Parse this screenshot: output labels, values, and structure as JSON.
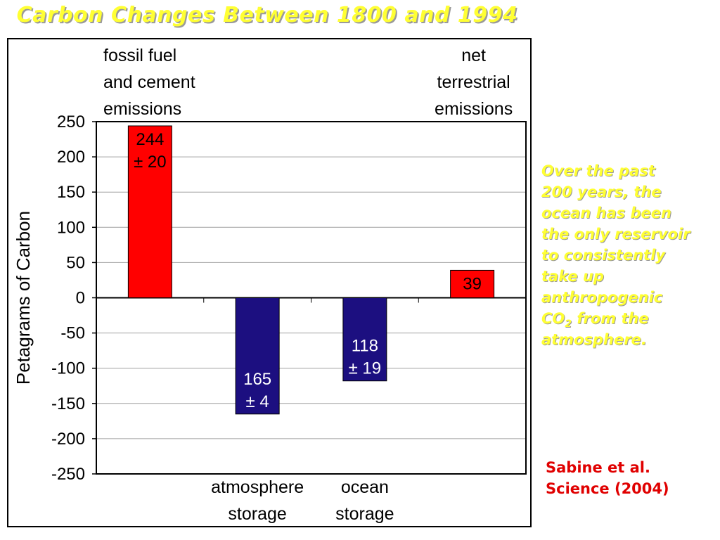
{
  "title": "Carbon Changes Between 1800 and 1994",
  "note": {
    "lines": [
      "Over the past",
      "200 years, the",
      "ocean has been",
      "the only reservoir",
      "to consistently",
      "take up",
      "anthropogenic"
    ],
    "co2_main": "CO",
    "co2_sub": "2",
    "co2_rest": " from the",
    "last_line": "atmosphere."
  },
  "citation": {
    "line1": "Sabine et al.",
    "line2": "Science (2004)"
  },
  "colors": {
    "positive_bar": "#ff0000",
    "negative_bar": "#1c0f80",
    "title_yellow": "#ffff33",
    "citation_red": "#e00000"
  },
  "chart_data": {
    "type": "bar",
    "ylabel": "Petagrams of Carbon",
    "ylim": [
      -250,
      250
    ],
    "yticks": [
      250,
      200,
      150,
      100,
      50,
      0,
      -50,
      -100,
      -150,
      -200,
      -250
    ],
    "grid": true,
    "categories": [
      {
        "label_lines": [
          "fossil fuel",
          "and cement",
          "emissions"
        ],
        "label_position": "top"
      },
      {
        "label_lines": [
          "atmosphere",
          "storage"
        ],
        "label_position": "bottom"
      },
      {
        "label_lines": [
          "ocean",
          "storage"
        ],
        "label_position": "bottom"
      },
      {
        "label_lines": [
          "net",
          "terrestrial",
          "emissions"
        ],
        "label_position": "top"
      }
    ],
    "values": [
      244,
      -165,
      -118,
      39
    ],
    "data_labels": [
      [
        "244",
        "± 20"
      ],
      [
        "165",
        "± 4"
      ],
      [
        "118",
        "± 19"
      ],
      [
        "39"
      ]
    ]
  }
}
